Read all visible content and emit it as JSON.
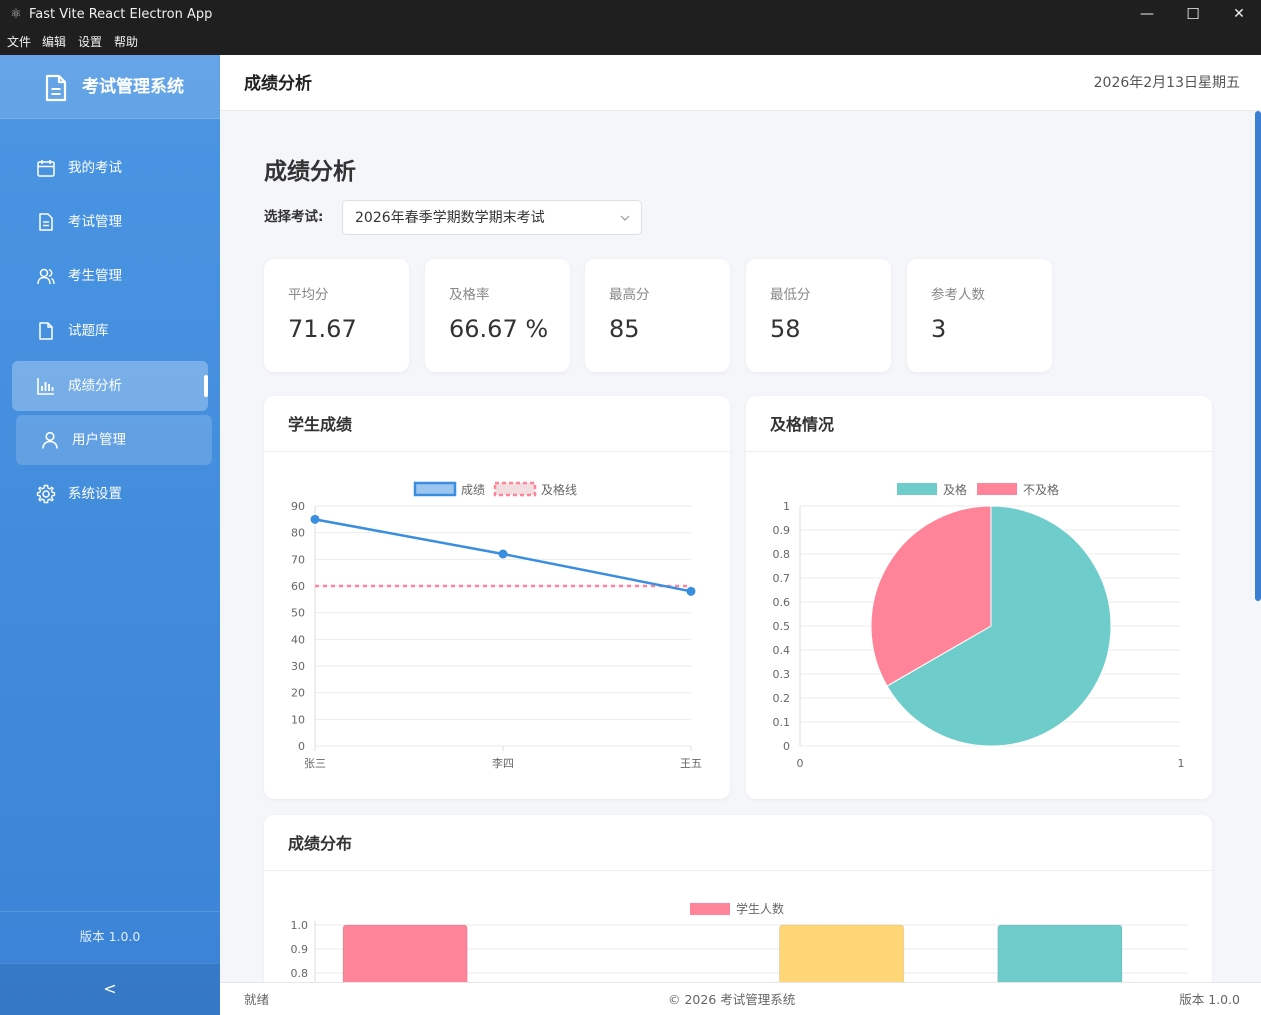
{
  "window": {
    "title": "Fast Vite React Electron App",
    "minimize": "—",
    "maximize": "☐",
    "close": "✕"
  },
  "menu": [
    "文件",
    "编辑",
    "设置",
    "帮助"
  ],
  "sidebar": {
    "brand": "考试管理系统",
    "items": [
      {
        "label": "我的考试",
        "icon": "calendar-icon"
      },
      {
        "label": "考试管理",
        "icon": "document-icon"
      },
      {
        "label": "考生管理",
        "icon": "users-icon"
      },
      {
        "label": "试题库",
        "icon": "file-icon"
      },
      {
        "label": "成绩分析",
        "icon": "bar-chart-icon",
        "active": true
      },
      {
        "label": "用户管理",
        "icon": "user-icon"
      },
      {
        "label": "系统设置",
        "icon": "gear-icon"
      }
    ],
    "version": "版本 1.0.0",
    "collapse": "<"
  },
  "header": {
    "title": "成绩分析",
    "date": "2026年2月13日星期五"
  },
  "main": {
    "title": "成绩分析",
    "select_label": "选择考试:",
    "select_value": "2026年春季学期数学期末考试",
    "stats": [
      {
        "label": "平均分",
        "value": "71.67"
      },
      {
        "label": "及格率",
        "value": "66.67 %"
      },
      {
        "label": "最高分",
        "value": "85"
      },
      {
        "label": "最低分",
        "value": "58"
      },
      {
        "label": "参考人数",
        "value": "3"
      }
    ]
  },
  "colors": {
    "accent": "#3a8ee0",
    "pass": "#6ecdcb",
    "fail": "#ff8499",
    "yellow": "#ffd675"
  },
  "chart_data": [
    {
      "type": "line",
      "title": "学生成绩",
      "categories": [
        "张三",
        "李四",
        "王五"
      ],
      "series": [
        {
          "name": "成绩",
          "values": [
            85,
            72,
            58
          ]
        },
        {
          "name": "及格线",
          "values": [
            60,
            60,
            60
          ]
        }
      ],
      "ylim": [
        0,
        90
      ],
      "yticks": [
        "0",
        "10",
        "20",
        "30",
        "40",
        "50",
        "60",
        "70",
        "80",
        "90"
      ],
      "grid": true,
      "legend": "top"
    },
    {
      "type": "pie",
      "title": "及格情况",
      "categories": [
        "及格",
        "不及格"
      ],
      "values": [
        2,
        1
      ],
      "yticks": [
        "0",
        "0.1",
        "0.2",
        "0.3",
        "0.4",
        "0.5",
        "0.6",
        "0.7",
        "0.8",
        "0.9",
        "1"
      ],
      "xticks": [
        "0",
        "1"
      ],
      "legend": "top"
    },
    {
      "type": "bar",
      "title": "成绩分布",
      "series": [
        {
          "name": "学生人数",
          "values": [
            1,
            0,
            1,
            1
          ]
        }
      ],
      "ylim": [
        0,
        1.0
      ],
      "yticks_visible": [
        "1.0",
        "0.9",
        "0.8"
      ],
      "legend": "top"
    }
  ],
  "footer": {
    "left": "就绪",
    "center": "© 2026 考试管理系统",
    "right": "版本 1.0.0"
  }
}
